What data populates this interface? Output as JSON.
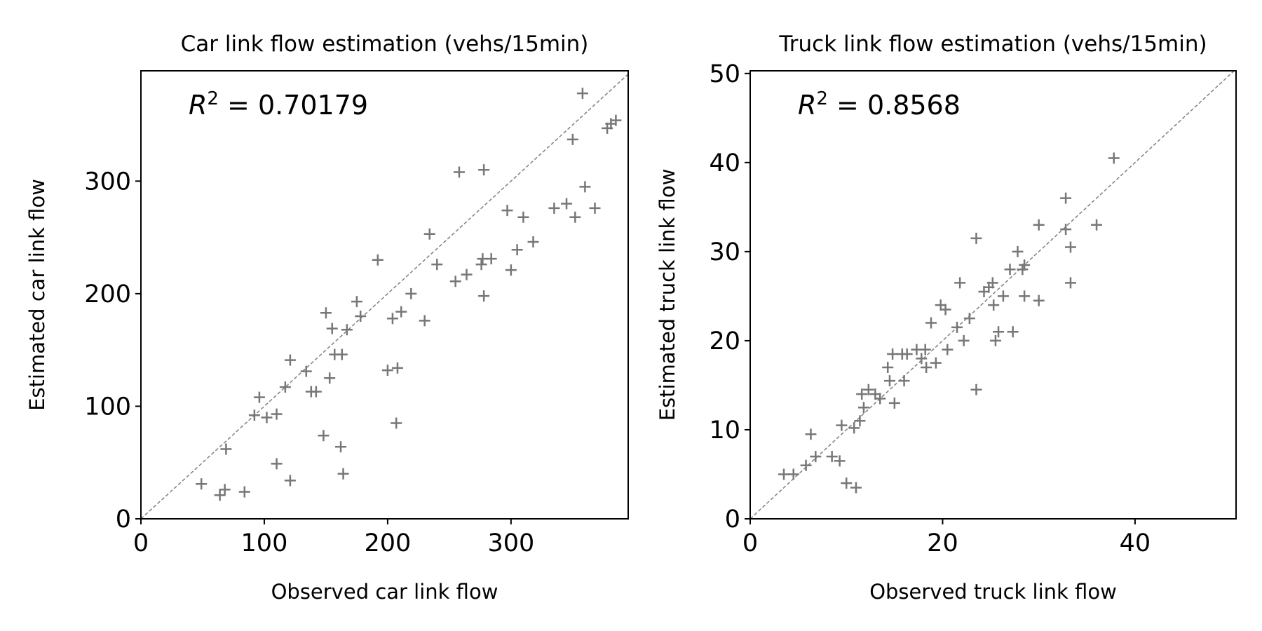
{
  "chart_data": [
    {
      "type": "scatter",
      "title": "Car link flow estimation (vehs/15min)",
      "xlabel": "Observed car link flow",
      "ylabel": "Estimated car link flow",
      "xlim": [
        0,
        395
      ],
      "ylim": [
        0,
        398
      ],
      "xticks": [
        0,
        100,
        200,
        300
      ],
      "yticks": [
        0,
        100,
        200,
        300
      ],
      "grid": false,
      "marker": "+",
      "marker_color": "#777777",
      "reference_line": "y = x, dashed gray",
      "annotation": {
        "r2_symbol": "R",
        "r2_sup": "2",
        "r2_text": " = 0.70179"
      },
      "points": [
        [
          49,
          31
        ],
        [
          64,
          21
        ],
        [
          68,
          26
        ],
        [
          69,
          62
        ],
        [
          84,
          24
        ],
        [
          92,
          92
        ],
        [
          96,
          108
        ],
        [
          102,
          90
        ],
        [
          110,
          93
        ],
        [
          110,
          49
        ],
        [
          117,
          117
        ],
        [
          121,
          34
        ],
        [
          121,
          141
        ],
        [
          134,
          131
        ],
        [
          138,
          113
        ],
        [
          142,
          113
        ],
        [
          148,
          74
        ],
        [
          150,
          183
        ],
        [
          153,
          125
        ],
        [
          155,
          169
        ],
        [
          157,
          146
        ],
        [
          162,
          64
        ],
        [
          163,
          146
        ],
        [
          164,
          40
        ],
        [
          167,
          168
        ],
        [
          175,
          193
        ],
        [
          178,
          180
        ],
        [
          192,
          230
        ],
        [
          200,
          132
        ],
        [
          204,
          178
        ],
        [
          207,
          85
        ],
        [
          208,
          134
        ],
        [
          211,
          184
        ],
        [
          219,
          200
        ],
        [
          230,
          176
        ],
        [
          234,
          253
        ],
        [
          240,
          226
        ],
        [
          255,
          211
        ],
        [
          258,
          308
        ],
        [
          264,
          217
        ],
        [
          276,
          226
        ],
        [
          277,
          231
        ],
        [
          278,
          198
        ],
        [
          278,
          310
        ],
        [
          284,
          231
        ],
        [
          297,
          274
        ],
        [
          300,
          221
        ],
        [
          305,
          239
        ],
        [
          310,
          268
        ],
        [
          318,
          246
        ],
        [
          335,
          276
        ],
        [
          345,
          280
        ],
        [
          350,
          337
        ],
        [
          352,
          268
        ],
        [
          358,
          378
        ],
        [
          360,
          295
        ],
        [
          368,
          276
        ],
        [
          378,
          347
        ],
        [
          381,
          351
        ],
        [
          385,
          354
        ]
      ]
    },
    {
      "type": "scatter",
      "title": "Truck link flow estimation (vehs/15min)",
      "xlabel": "Observed truck link flow",
      "ylabel": "Estimated truck link flow",
      "xlim": [
        0,
        50.5
      ],
      "ylim": [
        0,
        50.3
      ],
      "xticks": [
        0,
        20,
        40
      ],
      "yticks": [
        0,
        10,
        20,
        30,
        40,
        50
      ],
      "grid": false,
      "marker": "+",
      "marker_color": "#777777",
      "reference_line": "y = x, dashed gray",
      "annotation": {
        "r2_symbol": "R",
        "r2_sup": "2",
        "r2_text": " = 0.8568"
      },
      "points": [
        [
          3.5,
          5.0
        ],
        [
          4.5,
          5.0
        ],
        [
          5.8,
          6.0
        ],
        [
          6.3,
          9.5
        ],
        [
          6.8,
          7.0
        ],
        [
          8.5,
          7.0
        ],
        [
          9.3,
          6.5
        ],
        [
          9.5,
          10.5
        ],
        [
          10.0,
          4.0
        ],
        [
          10.8,
          10.2
        ],
        [
          11.0,
          3.5
        ],
        [
          11.4,
          11.0
        ],
        [
          11.6,
          14.0
        ],
        [
          11.8,
          12.5
        ],
        [
          12.3,
          14.5
        ],
        [
          13.0,
          14.0
        ],
        [
          13.5,
          13.5
        ],
        [
          14.3,
          17.0
        ],
        [
          14.5,
          15.5
        ],
        [
          14.8,
          18.5
        ],
        [
          15.0,
          13.0
        ],
        [
          15.8,
          18.5
        ],
        [
          16.0,
          15.5
        ],
        [
          16.3,
          18.5
        ],
        [
          17.3,
          19.0
        ],
        [
          17.8,
          18.0
        ],
        [
          18.2,
          19.0
        ],
        [
          18.3,
          17.0
        ],
        [
          18.8,
          22.0
        ],
        [
          19.3,
          17.5
        ],
        [
          19.8,
          24.0
        ],
        [
          20.3,
          23.5
        ],
        [
          20.5,
          19.0
        ],
        [
          21.5,
          21.5
        ],
        [
          21.8,
          26.5
        ],
        [
          22.2,
          20.0
        ],
        [
          22.8,
          22.5
        ],
        [
          23.5,
          31.5
        ],
        [
          23.5,
          14.5
        ],
        [
          24.3,
          25.5
        ],
        [
          24.8,
          26.0
        ],
        [
          25.2,
          26.5
        ],
        [
          25.3,
          24.0
        ],
        [
          25.5,
          20.0
        ],
        [
          25.8,
          21.0
        ],
        [
          26.3,
          25.0
        ],
        [
          27.0,
          28.0
        ],
        [
          27.3,
          21.0
        ],
        [
          27.8,
          30.0
        ],
        [
          28.3,
          28.0
        ],
        [
          28.5,
          25.0
        ],
        [
          28.5,
          28.5
        ],
        [
          30.0,
          24.5
        ],
        [
          30.0,
          33.0
        ],
        [
          32.8,
          36.0
        ],
        [
          32.8,
          32.5
        ],
        [
          33.3,
          30.5
        ],
        [
          33.3,
          26.5
        ],
        [
          36.0,
          33.0
        ],
        [
          37.8,
          40.5
        ]
      ]
    }
  ]
}
